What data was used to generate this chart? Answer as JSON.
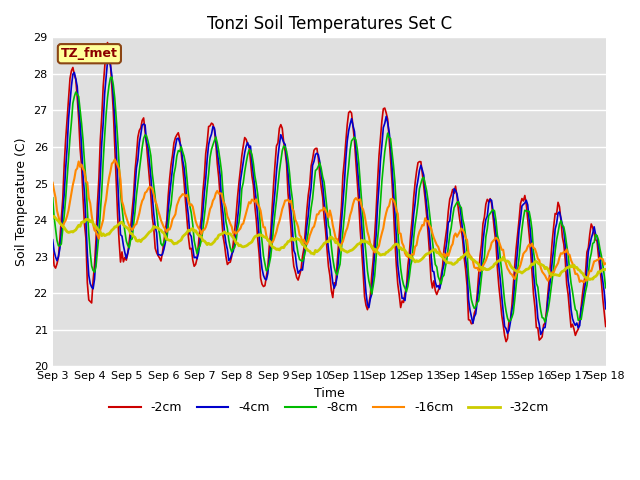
{
  "title": "Tonzi Soil Temperatures Set C",
  "xlabel": "Time",
  "ylabel": "Soil Temperature (C)",
  "ylim": [
    20.0,
    29.0
  ],
  "yticks": [
    20.0,
    21.0,
    22.0,
    23.0,
    24.0,
    25.0,
    26.0,
    27.0,
    28.0,
    29.0
  ],
  "label_box_text": "TZ_fmet",
  "label_box_color": "#ffff99",
  "label_box_edge_color": "#8B4513",
  "bg_color": "#e0e0e0",
  "fig_color": "#ffffff",
  "lines": [
    {
      "label": "-2cm",
      "color": "#cc0000",
      "lw": 1.2
    },
    {
      "label": "-4cm",
      "color": "#0000cc",
      "lw": 1.2
    },
    {
      "label": "-8cm",
      "color": "#00bb00",
      "lw": 1.2
    },
    {
      "label": "-16cm",
      "color": "#ff8800",
      "lw": 1.5
    },
    {
      "label": "-32cm",
      "color": "#cccc00",
      "lw": 2.0
    }
  ],
  "x_tick_labels": [
    "Sep 3",
    "Sep 4",
    "Sep 5",
    "Sep 6",
    "Sep 7",
    "Sep 8",
    "Sep 9",
    "Sep 10",
    "Sep 11",
    "Sep 12",
    "Sep 13",
    "Sep 14",
    "Sep 15",
    "Sep 16",
    "Sep 17",
    "Sep 18"
  ],
  "n_days": 16,
  "samples_per_day": 24
}
